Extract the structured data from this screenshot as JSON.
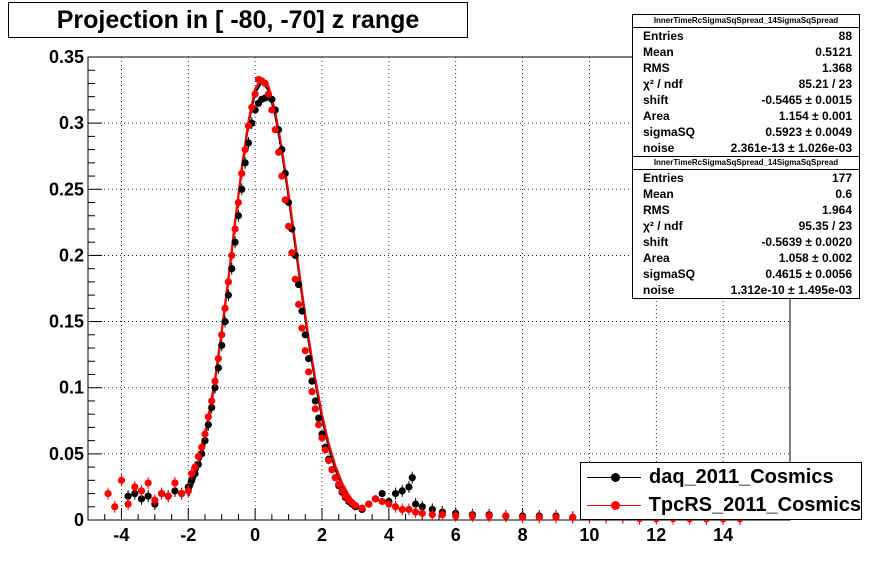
{
  "chart_data": {
    "type": "scatter",
    "title": "Projection in [ -80, -70] z range",
    "xlim": [
      -5,
      16
    ],
    "ylim": [
      0,
      0.35
    ],
    "x_ticks": [
      -4,
      -2,
      0,
      2,
      4,
      6,
      8,
      10,
      12,
      14
    ],
    "x_tick_labels": [
      "-4",
      "-2",
      "0",
      "2",
      "4",
      "6",
      "8",
      "10",
      "12",
      "14"
    ],
    "y_ticks": [
      0,
      0.05,
      0.1,
      0.15,
      0.2,
      0.25,
      0.3,
      0.35
    ],
    "y_tick_labels": [
      "0",
      "0.05",
      "0.1",
      "0.15",
      "0.2",
      "0.25",
      "0.3",
      "0.35"
    ],
    "grid": true,
    "legend_position": "bottom-right",
    "series": [
      {
        "name": "daq_2011_Cosmics",
        "color": "#000000",
        "x": [
          -3.8,
          -3.6,
          -3.4,
          -3.2,
          -3.0,
          -2.8,
          -2.6,
          -2.4,
          -2.2,
          -2.0,
          -1.9,
          -1.8,
          -1.7,
          -1.6,
          -1.5,
          -1.4,
          -1.3,
          -1.2,
          -1.1,
          -1.0,
          -0.9,
          -0.8,
          -0.7,
          -0.6,
          -0.5,
          -0.4,
          -0.3,
          -0.2,
          -0.1,
          0.0,
          0.1,
          0.2,
          0.3,
          0.4,
          0.5,
          0.6,
          0.7,
          0.8,
          0.9,
          1.0,
          1.1,
          1.2,
          1.3,
          1.4,
          1.5,
          1.6,
          1.7,
          1.8,
          1.9,
          2.0,
          2.1,
          2.2,
          2.3,
          2.4,
          2.5,
          2.6,
          2.7,
          2.8,
          2.9,
          3.0,
          3.2,
          3.4,
          3.6,
          3.8,
          4.0,
          4.2,
          4.4,
          4.6,
          4.7,
          4.8,
          5.0,
          5.3,
          5.6,
          6.0,
          6.5,
          7.0,
          7.5,
          8.0,
          8.5,
          9.0,
          9.5,
          10.0,
          10.5,
          11.0,
          11.5,
          12.0,
          12.5,
          13.0,
          13.5,
          14.0,
          14.5
        ],
        "y": [
          0.018,
          0.02,
          0.016,
          0.018,
          0.012,
          0.02,
          0.018,
          0.022,
          0.02,
          0.025,
          0.03,
          0.035,
          0.042,
          0.05,
          0.06,
          0.072,
          0.085,
          0.1,
          0.115,
          0.132,
          0.15,
          0.17,
          0.19,
          0.21,
          0.23,
          0.25,
          0.27,
          0.285,
          0.3,
          0.31,
          0.315,
          0.318,
          0.319,
          0.32,
          0.318,
          0.31,
          0.295,
          0.28,
          0.262,
          0.24,
          0.22,
          0.2,
          0.178,
          0.158,
          0.14,
          0.122,
          0.105,
          0.09,
          0.077,
          0.065,
          0.055,
          0.046,
          0.038,
          0.032,
          0.026,
          0.021,
          0.017,
          0.014,
          0.012,
          0.01,
          0.008,
          0.012,
          0.016,
          0.02,
          0.014,
          0.02,
          0.022,
          0.025,
          0.032,
          0.012,
          0.01,
          0.008,
          0.006,
          0.005,
          0.004,
          0.004,
          0.003,
          0.003,
          0.003,
          0.003,
          0.002,
          0.002,
          0.002,
          0.002,
          0.002,
          0.002,
          0.002,
          0.002,
          0.001,
          0.001,
          0.001
        ],
        "fit_x": [
          -2.0,
          -1.8,
          -1.6,
          -1.4,
          -1.2,
          -1.0,
          -0.8,
          -0.6,
          -0.4,
          -0.2,
          0.0,
          0.2,
          0.4,
          0.6,
          0.8,
          1.0,
          1.2,
          1.4,
          1.6,
          1.8,
          2.0,
          2.2,
          2.4,
          2.6,
          2.8,
          3.0,
          3.2
        ],
        "fit_y": [
          0.018,
          0.032,
          0.05,
          0.075,
          0.105,
          0.142,
          0.182,
          0.225,
          0.265,
          0.3,
          0.323,
          0.331,
          0.325,
          0.306,
          0.278,
          0.244,
          0.207,
          0.17,
          0.135,
          0.104,
          0.077,
          0.055,
          0.038,
          0.026,
          0.017,
          0.011,
          0.007
        ]
      },
      {
        "name": "TpcRS_2011_Cosmics",
        "color": "#ff0000",
        "x": [
          -4.4,
          -4.2,
          -4.0,
          -3.8,
          -3.6,
          -3.4,
          -3.2,
          -3.0,
          -2.8,
          -2.6,
          -2.4,
          -2.2,
          -2.0,
          -1.9,
          -1.8,
          -1.7,
          -1.6,
          -1.5,
          -1.4,
          -1.3,
          -1.2,
          -1.1,
          -1.0,
          -0.9,
          -0.8,
          -0.7,
          -0.6,
          -0.5,
          -0.4,
          -0.3,
          -0.2,
          -0.1,
          0.0,
          0.1,
          0.2,
          0.3,
          0.4,
          0.5,
          0.6,
          0.7,
          0.8,
          0.9,
          1.0,
          1.1,
          1.2,
          1.3,
          1.4,
          1.5,
          1.6,
          1.7,
          1.8,
          1.9,
          2.0,
          2.1,
          2.2,
          2.3,
          2.4,
          2.5,
          2.6,
          2.7,
          2.8,
          2.9,
          3.0,
          3.2,
          3.4,
          3.6,
          3.8,
          4.0,
          4.2,
          4.4,
          4.6,
          4.8,
          5.0,
          5.3,
          5.6,
          6.0,
          6.5,
          7.0,
          7.5,
          8.0,
          8.5,
          9.0,
          9.5,
          10.0,
          10.5,
          11.0,
          11.5,
          12.0,
          12.5,
          13.0,
          13.5,
          14.0,
          14.5
        ],
        "y": [
          0.02,
          0.01,
          0.03,
          0.012,
          0.025,
          0.022,
          0.028,
          0.015,
          0.02,
          0.018,
          0.028,
          0.02,
          0.022,
          0.035,
          0.04,
          0.048,
          0.055,
          0.065,
          0.078,
          0.09,
          0.105,
          0.122,
          0.14,
          0.16,
          0.18,
          0.2,
          0.22,
          0.24,
          0.262,
          0.28,
          0.298,
          0.312,
          0.322,
          0.333,
          0.332,
          0.33,
          0.322,
          0.31,
          0.295,
          0.278,
          0.26,
          0.242,
          0.222,
          0.202,
          0.182,
          0.163,
          0.145,
          0.128,
          0.112,
          0.097,
          0.084,
          0.072,
          0.062,
          0.053,
          0.045,
          0.038,
          0.032,
          0.027,
          0.022,
          0.018,
          0.015,
          0.013,
          0.011,
          0.009,
          0.012,
          0.016,
          0.014,
          0.012,
          0.01,
          0.008,
          0.008,
          0.006,
          0.005,
          0.004,
          0.004,
          0.003,
          0.003,
          0.003,
          0.003,
          0.002,
          0.002,
          0.002,
          0.002,
          0.002,
          0.002,
          0.002,
          0.001,
          0.001,
          0.001,
          0.001,
          0.001,
          0.001,
          0.001
        ],
        "fit_x": [
          -2.0,
          -1.8,
          -1.6,
          -1.4,
          -1.2,
          -1.0,
          -0.8,
          -0.6,
          -0.4,
          -0.2,
          0.0,
          0.2,
          0.4,
          0.6,
          0.8,
          1.0,
          1.2,
          1.4,
          1.6,
          1.8,
          2.0,
          2.2,
          2.4,
          2.6,
          2.8,
          3.0,
          3.2
        ],
        "fit_y": [
          0.02,
          0.034,
          0.052,
          0.077,
          0.107,
          0.143,
          0.183,
          0.226,
          0.267,
          0.302,
          0.326,
          0.334,
          0.328,
          0.309,
          0.281,
          0.247,
          0.21,
          0.173,
          0.138,
          0.107,
          0.08,
          0.058,
          0.041,
          0.028,
          0.019,
          0.012,
          0.008
        ]
      }
    ]
  },
  "stats_boxes": [
    {
      "title": "InnerTimeRcSigmaSqSpread_14SigmaSqSpread",
      "rows": [
        {
          "label": "Entries",
          "value": "88"
        },
        {
          "label": "Mean",
          "value": "0.5121"
        },
        {
          "label": "RMS",
          "value": "1.368"
        },
        {
          "label": "χ² / ndf",
          "value": "85.21 / 23"
        },
        {
          "label": "shift",
          "value": "-0.5465 ± 0.0015"
        },
        {
          "label": "Area",
          "value": "1.154 ± 0.001"
        },
        {
          "label": "sigmaSQ",
          "value": "0.5923 ± 0.0049"
        },
        {
          "label": "noise",
          "value": "2.361e-13 ± 1.026e-03"
        }
      ]
    },
    {
      "title": "InnerTimeRcSigmaSqSpread_14SigmaSqSpread",
      "rows": [
        {
          "label": "Entries",
          "value": "177"
        },
        {
          "label": "Mean",
          "value": "0.6"
        },
        {
          "label": "RMS",
          "value": "1.964"
        },
        {
          "label": "χ² / ndf",
          "value": "95.35 / 23"
        },
        {
          "label": "shift",
          "value": "-0.5639 ± 0.0020"
        },
        {
          "label": "Area",
          "value": "1.058 ± 0.002"
        },
        {
          "label": "sigmaSQ",
          "value": "0.4615 ± 0.0056"
        },
        {
          "label": "noise",
          "value": "1.312e-10 ± 1.495e-03"
        }
      ]
    }
  ],
  "legend": [
    {
      "label": "daq_2011_Cosmics",
      "color": "#000000"
    },
    {
      "label": "TpcRS_2011_Cosmics",
      "color": "#ff0000"
    }
  ]
}
